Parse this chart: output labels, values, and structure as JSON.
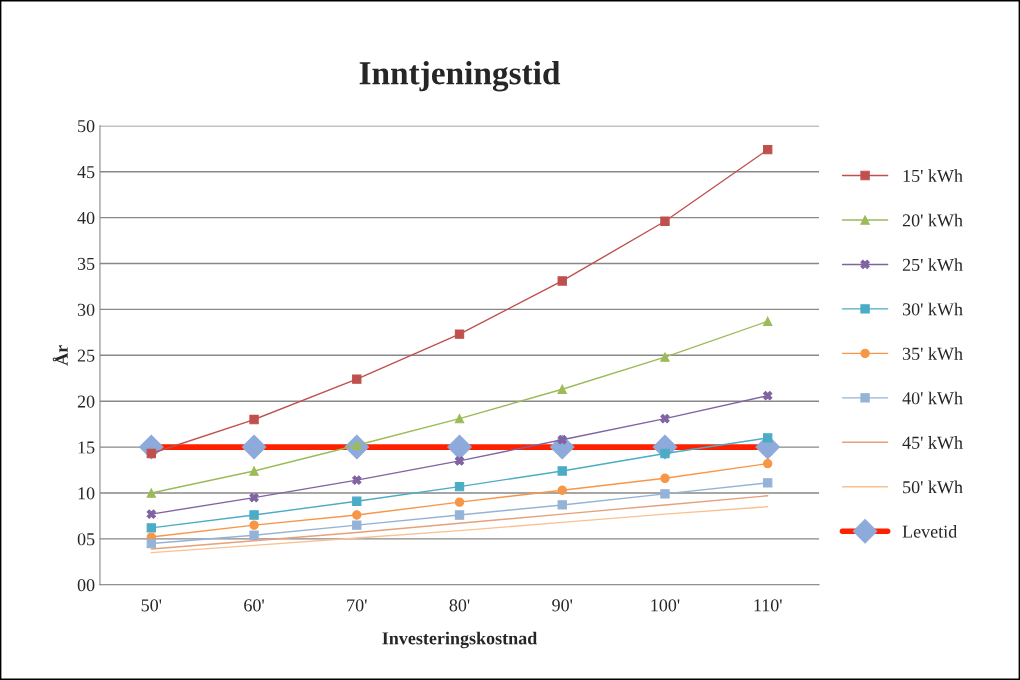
{
  "chart_data": {
    "type": "line",
    "title": "Inntjeningstid",
    "xlabel": "Investeringskostnad",
    "ylabel": "År",
    "categories": [
      "50'",
      "60'",
      "70'",
      "80'",
      "90'",
      "100'",
      "110'"
    ],
    "series": [
      {
        "name": "15' kWh",
        "color": "#c0504d",
        "marker": "square",
        "values": [
          14.3,
          18,
          22.4,
          27.3,
          33.1,
          39.6,
          47.4
        ]
      },
      {
        "name": "20' kWh",
        "color": "#9bbb59",
        "marker": "triangle",
        "values": [
          10,
          12.4,
          15.2,
          18.1,
          21.3,
          24.8,
          28.7
        ]
      },
      {
        "name": "25' kWh",
        "color": "#8064a2",
        "marker": "cross",
        "values": [
          7.7,
          9.5,
          11.4,
          13.5,
          15.8,
          18.1,
          20.6
        ]
      },
      {
        "name": "30' kWh",
        "color": "#4bacc6",
        "marker": "square",
        "values": [
          6.2,
          7.6,
          9.1,
          10.7,
          12.4,
          14.3,
          16
        ]
      },
      {
        "name": "35' kWh",
        "color": "#f79646",
        "marker": "circle",
        "values": [
          5.2,
          6.5,
          7.6,
          9.0,
          10.3,
          11.6,
          13.2
        ]
      },
      {
        "name": "40' kWh",
        "color": "#95b3d7",
        "marker": "square",
        "values": [
          4.5,
          5.4,
          6.5,
          7.6,
          8.7,
          9.9,
          11.1
        ]
      },
      {
        "name": "45' kWh",
        "color": "#e6a07a",
        "marker": "none",
        "values": [
          3.9,
          4.8,
          5.7,
          6.7,
          7.7,
          8.7,
          9.7
        ]
      },
      {
        "name": "50' kWh",
        "color": "#fac090",
        "marker": "none",
        "values": [
          3.5,
          4.3,
          5.1,
          5.9,
          6.8,
          7.7,
          8.5
        ]
      },
      {
        "name": "Levetid",
        "color": "#ff2000",
        "marker": "diamond",
        "values": [
          15,
          15,
          15,
          15,
          15,
          15,
          15
        ]
      }
    ],
    "ylim": [
      0,
      50
    ],
    "yticks": [
      {
        "value": 0,
        "label": "00"
      },
      {
        "value": 5,
        "label": "05"
      },
      10,
      15,
      20,
      25,
      30,
      35,
      40,
      45,
      50
    ],
    "grid": "y",
    "legend": "right"
  }
}
